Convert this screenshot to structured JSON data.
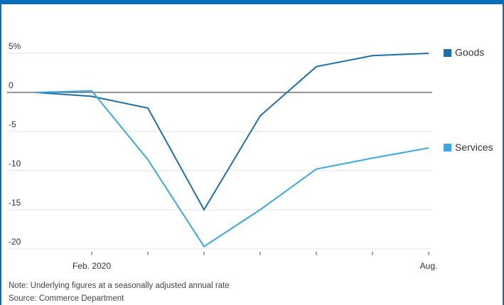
{
  "chart_data": {
    "type": "line",
    "categories": [
      null,
      "Feb. 2020",
      null,
      null,
      null,
      null,
      null,
      "Aug."
    ],
    "series": [
      {
        "name": "Goods",
        "color": "#1f6fa6",
        "values": [
          0,
          -0.5,
          -2,
          -15,
          -3,
          3.3,
          4.7,
          5.0
        ]
      },
      {
        "name": "Services",
        "color": "#3ba8de",
        "values": [
          0,
          0.2,
          -8.6,
          -19.7,
          -15,
          -9.8,
          -8.4,
          -7.1
        ]
      }
    ],
    "ylim": [
      -21,
      6
    ],
    "yticks": [
      {
        "value": 5,
        "label": "5%"
      },
      0,
      -5,
      -10,
      -15,
      -20
    ],
    "grid": true,
    "notes": [
      "Note: Underlying figures at a seasonally adjusted annual rate",
      "Source: Commerce Department"
    ]
  }
}
